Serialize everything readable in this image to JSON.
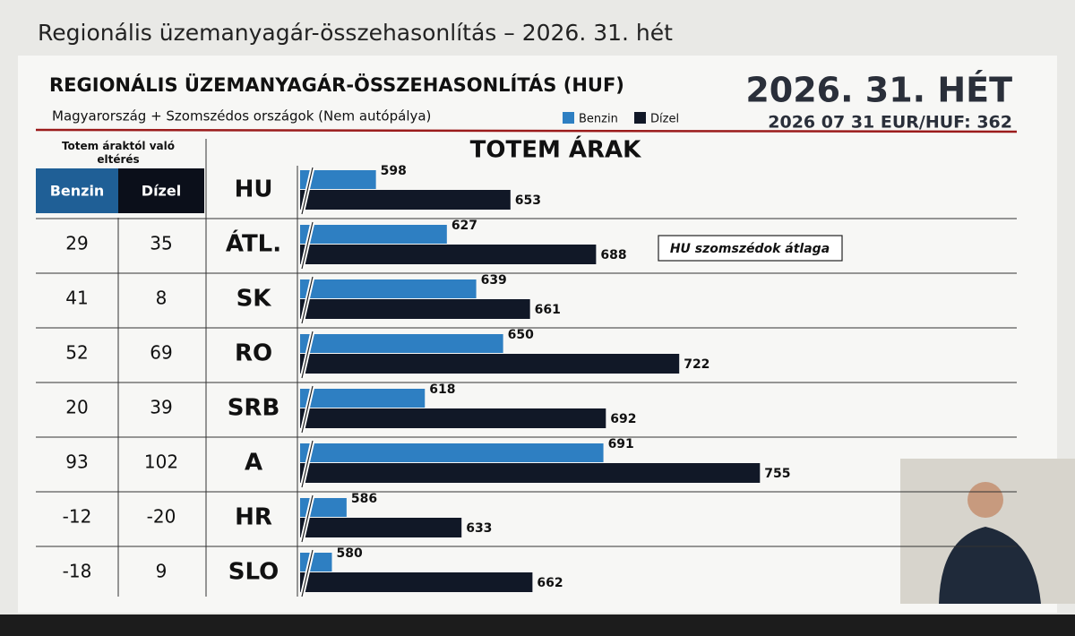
{
  "page_title": "Regionális üzemanyagár-összehasonlítás – 2026. 31. hét",
  "header": {
    "title": "REGIONÁLIS ÜZEMANYAGÁR-ÖSSZEHASONLÍTÁS (HUF)",
    "subtitle": "Magyarország + Szomszédos országok (Nem autópálya)",
    "week": "2026. 31. HÉT",
    "rate": "2026 07 31 EUR/HUF: 362"
  },
  "table": {
    "caption": "Totem áraktól való eltérés",
    "columns": [
      "Benzin",
      "Dízel"
    ],
    "rows": [
      [
        29,
        35
      ],
      [
        41,
        8
      ],
      [
        52,
        69
      ],
      [
        20,
        39
      ],
      [
        93,
        102
      ],
      [
        -12,
        -20
      ],
      [
        -18,
        9
      ]
    ]
  },
  "chart_data": {
    "type": "bar",
    "orientation": "horizontal",
    "title": "TOTEM ÁRAK",
    "categories": [
      "HU",
      "ÁTL.",
      "SK",
      "RO",
      "SRB",
      "A",
      "HR",
      "SLO"
    ],
    "series": [
      {
        "name": "Benzin",
        "color": "#2e7fc2",
        "values": [
          598,
          627,
          639,
          650,
          618,
          691,
          586,
          580
        ]
      },
      {
        "name": "Dízel",
        "color": "#111827",
        "values": [
          653,
          688,
          661,
          722,
          692,
          755,
          633,
          662
        ]
      }
    ],
    "xlim": [
      567,
      860
    ],
    "axis_break": true,
    "annotation": "HU szomszédok átlaga"
  }
}
